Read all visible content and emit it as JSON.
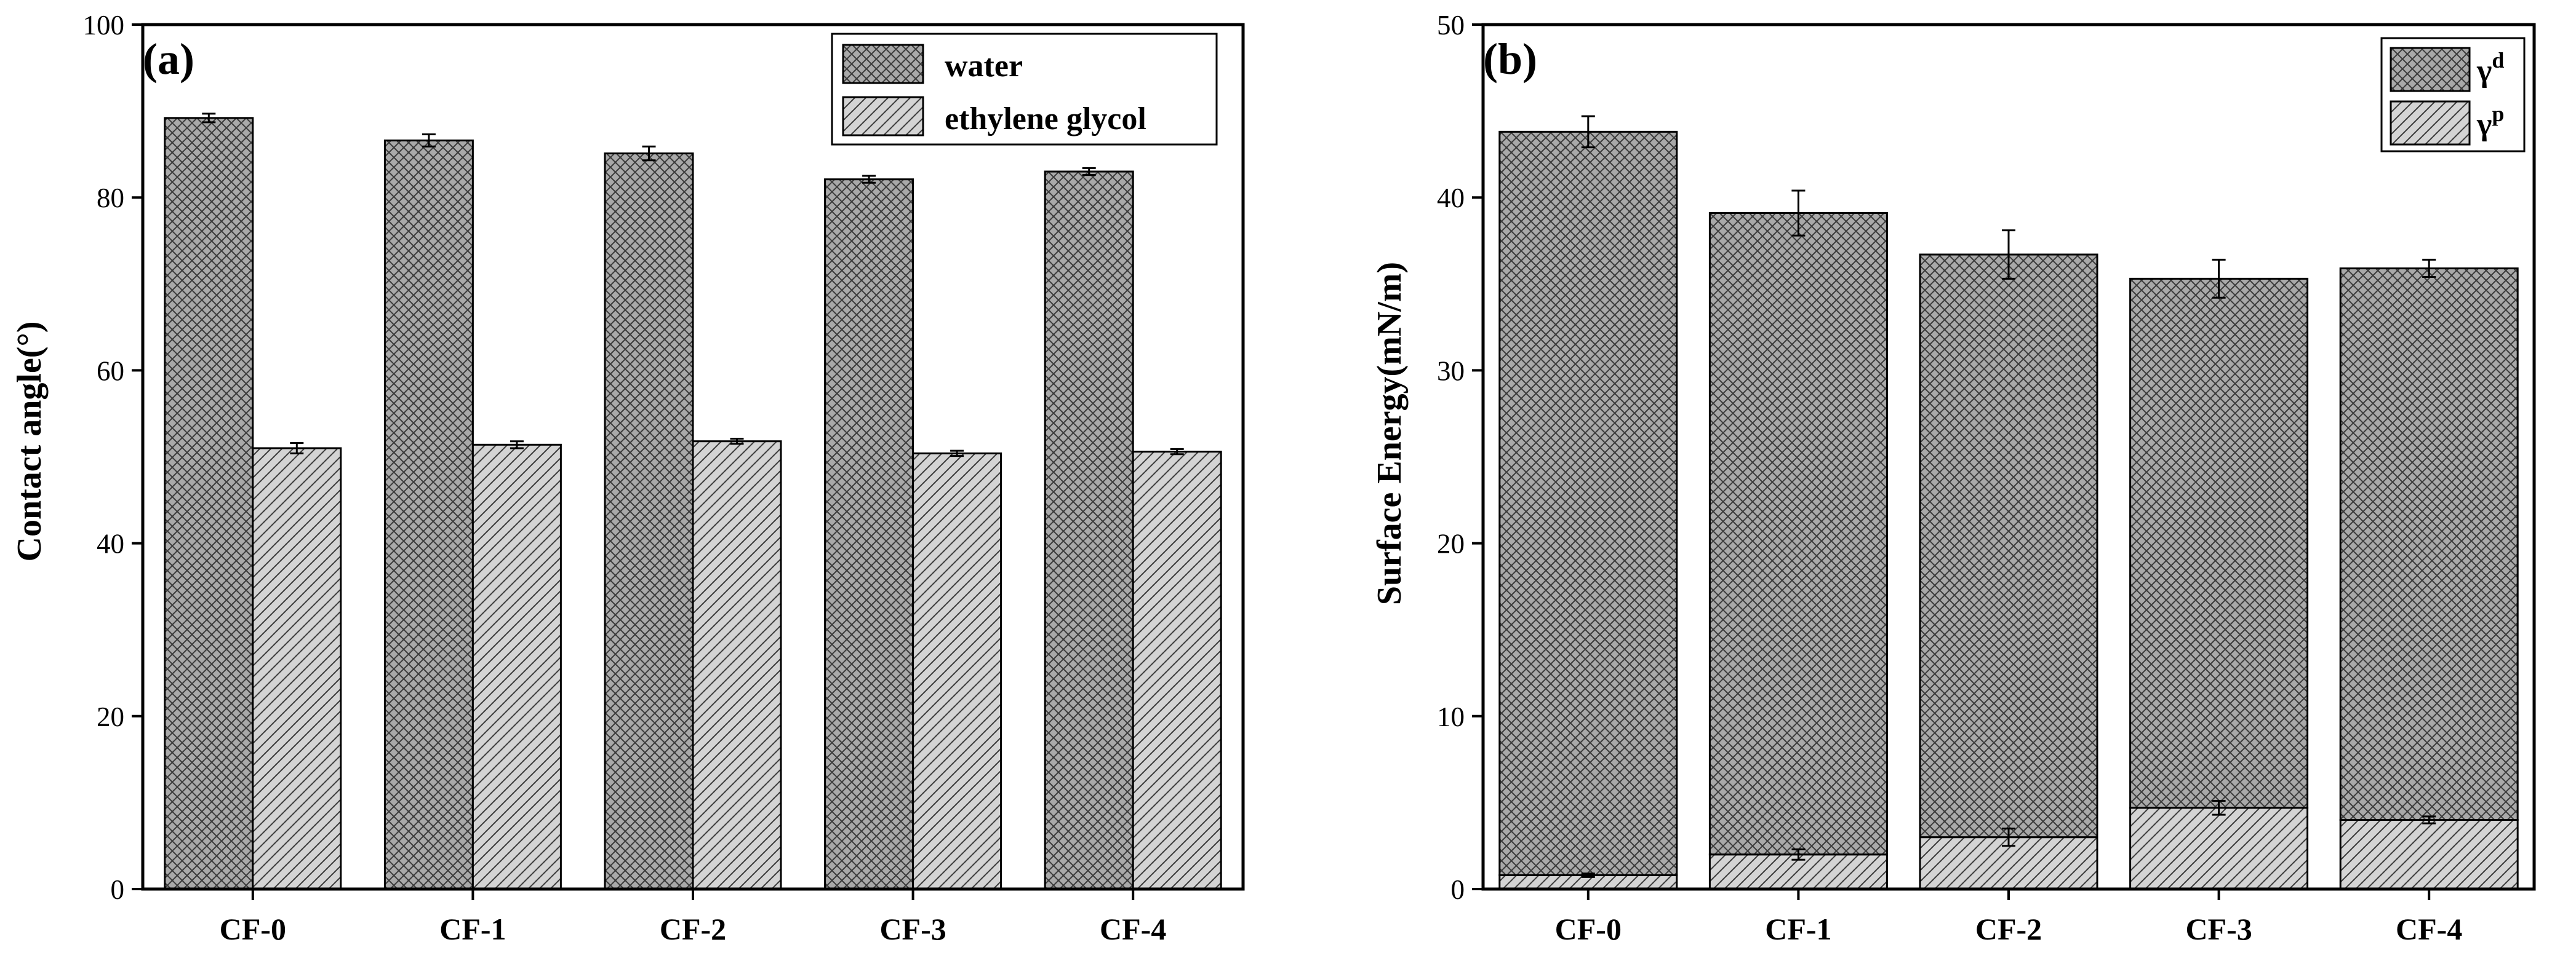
{
  "colors": {
    "water_fill": "#a9a9a9",
    "glycol_fill": "#d4d4d4",
    "dispersive_fill": "#a9a9a9",
    "polar_fill": "#d4d4d4",
    "hatch": "#3a3a3a",
    "axis": "#000000"
  },
  "chart_data": [
    {
      "type": "bar",
      "panel_label": "(a)",
      "title": "",
      "xlabel": "",
      "ylabel": "Contact angle(°)",
      "ylim": [
        0,
        100
      ],
      "yticks": [
        0,
        20,
        40,
        60,
        80,
        100
      ],
      "categories": [
        "CF-0",
        "CF-1",
        "CF-2",
        "CF-3",
        "CF-4"
      ],
      "legend_position": "top-right",
      "series": [
        {
          "name": "water",
          "values": [
            89.2,
            86.6,
            85.1,
            82.1,
            83.0
          ],
          "errors": [
            0.5,
            0.7,
            0.8,
            0.4,
            0.4
          ]
        },
        {
          "name": "ethylene glycol",
          "values": [
            51.0,
            51.4,
            51.8,
            50.4,
            50.6
          ],
          "errors": [
            0.6,
            0.4,
            0.3,
            0.3,
            0.3
          ]
        }
      ]
    },
    {
      "type": "bar",
      "stacked": true,
      "panel_label": "(b)",
      "title": "",
      "xlabel": "",
      "ylabel": "Surface Energy(mN/m)",
      "ylim": [
        0,
        50
      ],
      "yticks": [
        0,
        10,
        20,
        30,
        40,
        50
      ],
      "categories": [
        "CF-0",
        "CF-1",
        "CF-2",
        "CF-3",
        "CF-4"
      ],
      "legend_position": "top-right",
      "series": [
        {
          "name": "γ",
          "superscript": "p",
          "values": [
            0.8,
            2.0,
            3.0,
            4.7,
            4.0
          ],
          "errors": [
            0.1,
            0.3,
            0.5,
            0.4,
            0.2
          ]
        },
        {
          "name": "γ",
          "superscript": "d",
          "values": [
            43.0,
            37.1,
            33.7,
            30.6,
            31.9
          ],
          "errors": [
            0.9,
            1.3,
            1.4,
            1.1,
            0.5
          ]
        }
      ],
      "totals": [
        43.8,
        39.1,
        36.7,
        35.3,
        35.9
      ]
    }
  ]
}
